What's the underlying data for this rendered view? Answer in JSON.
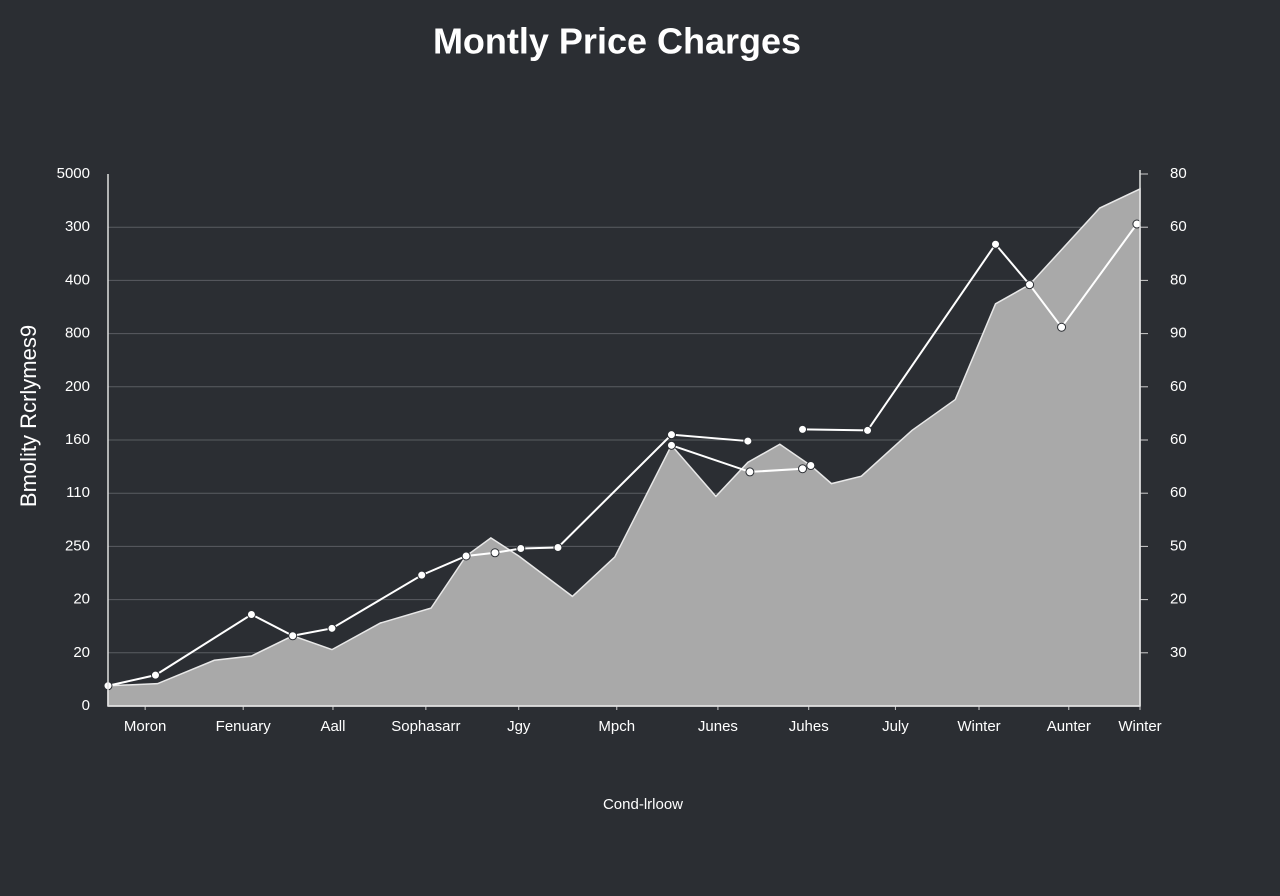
{
  "chart_data": {
    "type": "area",
    "title": "Montly Price Charges",
    "x_label": "Cond-lrloow",
    "y_label": "Bmolity Rcrlymes9",
    "xlim": [
      0,
      100
    ],
    "xticks": [
      {
        "value": 3.6,
        "label": "Moron"
      },
      {
        "value": 13.1,
        "label": "Fenuary"
      },
      {
        "value": 21.8,
        "label": "Aall"
      },
      {
        "value": 30.8,
        "label": "Sophasarr"
      },
      {
        "value": 39.8,
        "label": "Jgy"
      },
      {
        "value": 49.3,
        "label": "Mpch"
      },
      {
        "value": 59.1,
        "label": "Junes"
      },
      {
        "value": 67.9,
        "label": "Juhes"
      },
      {
        "value": 76.3,
        "label": "July"
      },
      {
        "value": 84.4,
        "label": "Winter"
      },
      {
        "value": 93.1,
        "label": "Aunter"
      },
      {
        "value": 100,
        "label": "Winter"
      }
    ],
    "ylim": [
      0,
      500
    ],
    "yticks": [
      0,
      {
        "value": 50,
        "label": "20"
      },
      {
        "value": 100,
        "label": "20"
      },
      {
        "value": 150,
        "label": "250"
      },
      {
        "value": 200,
        "label": "110"
      },
      {
        "value": 250,
        "label": "160"
      },
      {
        "value": 300,
        "label": "200"
      },
      {
        "value": 350,
        "label": "800"
      },
      {
        "value": 400,
        "label": "400"
      },
      {
        "value": 450,
        "label": "300"
      },
      {
        "value": 500,
        "label": "5000"
      }
    ],
    "y2lim": [
      0,
      100
    ],
    "y2ticks": [
      {
        "value": 10,
        "label": "30"
      },
      20,
      {
        "value": 30,
        "label": "50"
      },
      {
        "value": 40,
        "label": "60"
      },
      {
        "value": 50,
        "label": "60"
      },
      {
        "value": 60,
        "label": "60"
      },
      {
        "value": 70,
        "label": "90"
      },
      80,
      {
        "value": 90,
        "label": "60"
      },
      {
        "value": 100,
        "label": "80"
      }
    ],
    "grid": true,
    "series": [
      {
        "kind": "area",
        "color": "#a9a9a9",
        "x": [
          0,
          4.8,
          10.3,
          13.9,
          17.9,
          21.7,
          26.4,
          31.3,
          34.7,
          37.1,
          39.8,
          45.0,
          49.1,
          54.6,
          58.9,
          62.0,
          65.1,
          68.1,
          70.1,
          73.0,
          77.9,
          82.1,
          86.0,
          89.3,
          96.1,
          100
        ],
        "values": [
          19,
          21,
          43,
          47,
          66,
          53,
          78,
          92,
          141,
          158,
          141,
          103,
          140,
          245,
          197,
          229,
          246,
          226,
          209,
          216,
          259,
          288,
          378,
          396,
          468,
          486
        ]
      },
      {
        "kind": "line",
        "color": "#ffffff",
        "x": [
          0,
          4.6,
          13.9,
          17.9,
          21.7,
          30.4,
          34.7,
          37.5,
          40.0,
          43.6,
          54.6,
          62.0,
          64.6,
          67.3,
          73.6,
          86.0,
          89.3,
          92.4,
          99.7
        ],
        "values": [
          19,
          29,
          86,
          66,
          73,
          123,
          141,
          144,
          148,
          149,
          255,
          249,
          null,
          260,
          259,
          434,
          396,
          356,
          453
        ]
      },
      {
        "kind": "line",
        "color": "#ffffff",
        "x": [
          54.6,
          62.2,
          67.3,
          68.1
        ],
        "values": [
          245,
          220,
          223,
          226
        ]
      }
    ]
  }
}
